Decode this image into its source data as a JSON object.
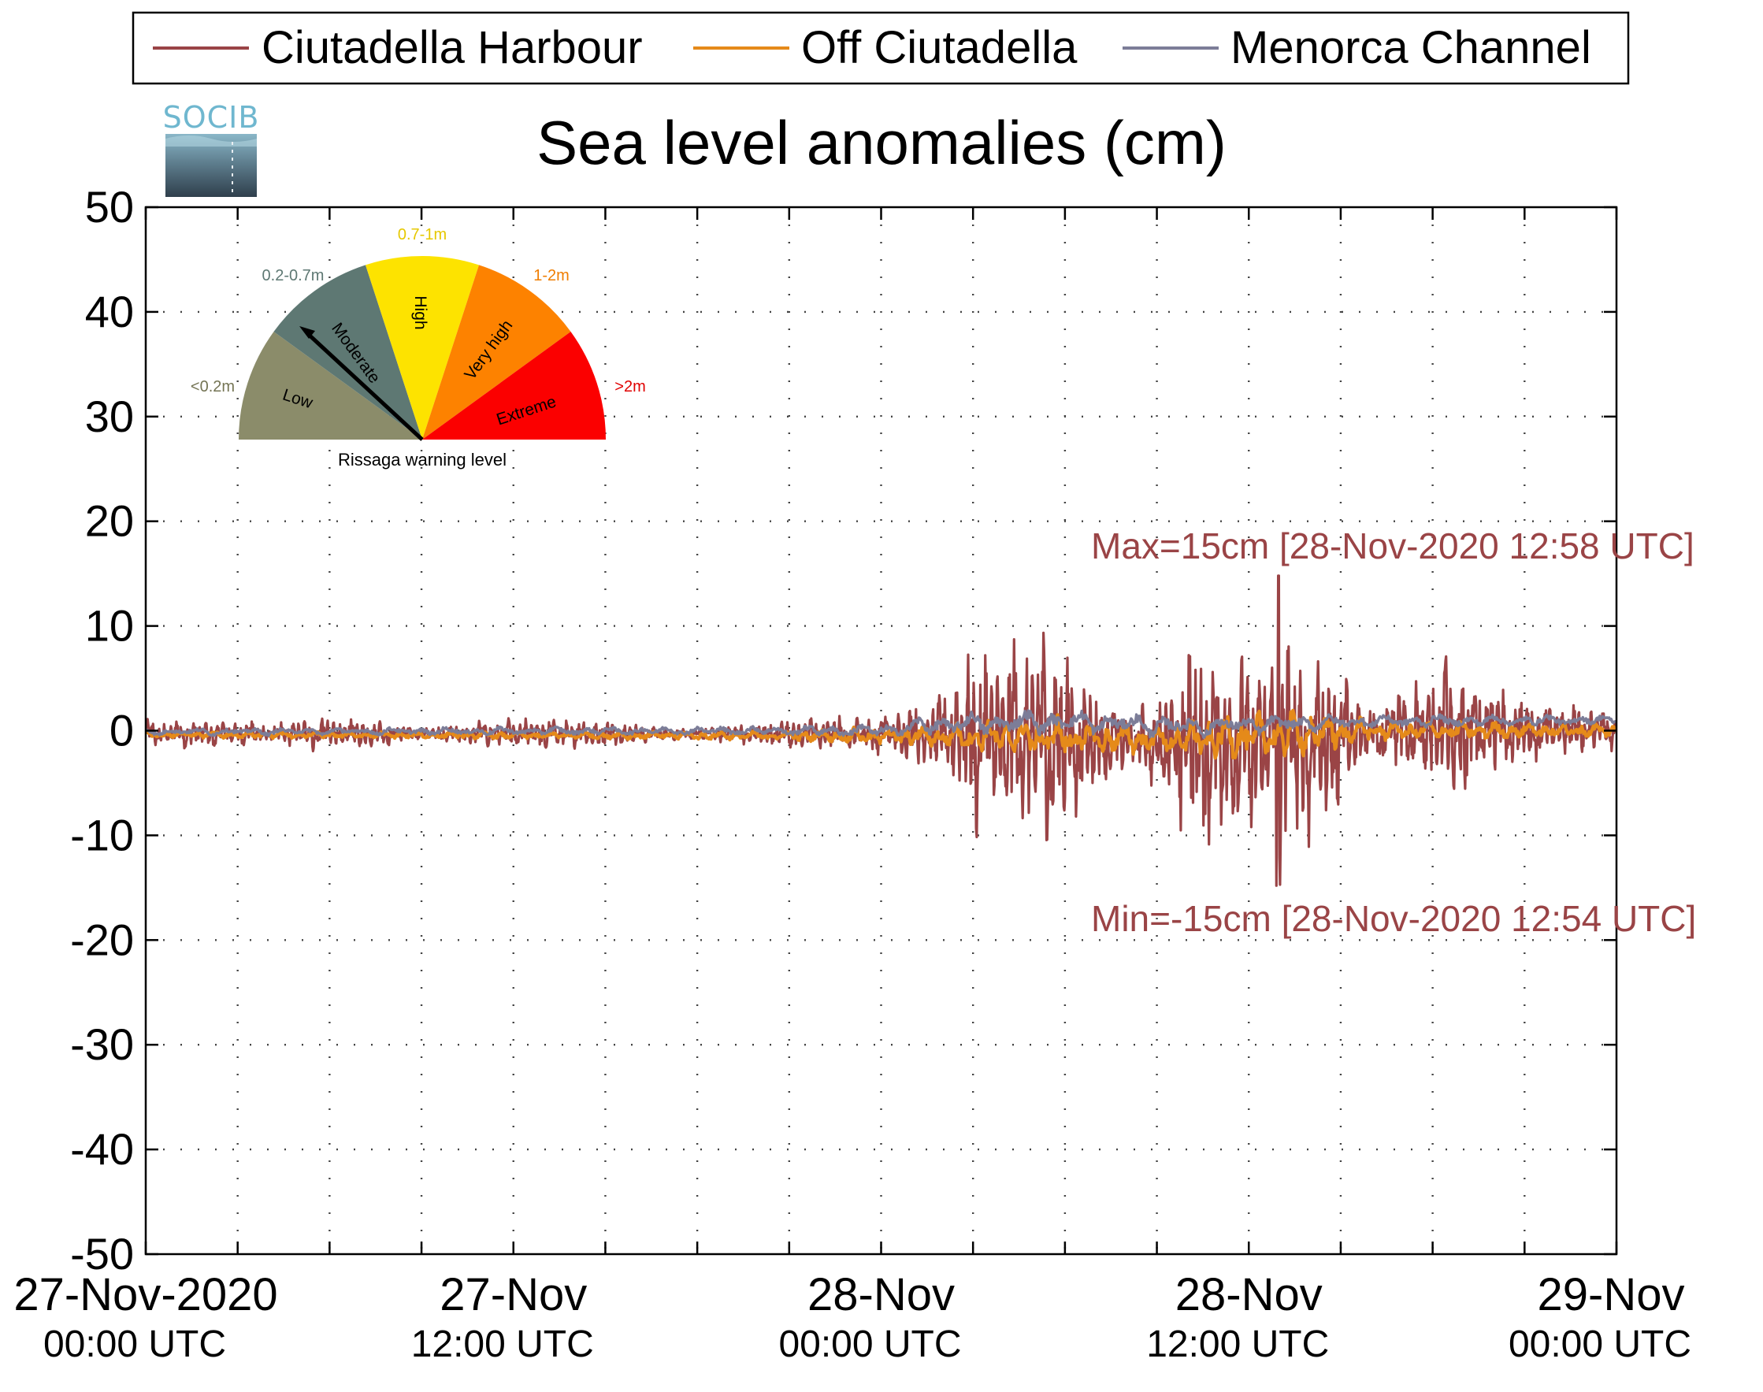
{
  "chart_data": {
    "type": "line",
    "title": "Sea level anomalies (cm)",
    "xlabel": "",
    "ylabel": "",
    "ylim": [
      -50,
      50
    ],
    "yticks": [
      50,
      40,
      30,
      20,
      10,
      0,
      -10,
      -20,
      -30,
      -40,
      -50
    ],
    "xlim_hours": [
      0,
      48
    ],
    "xticks": [
      {
        "hours": 0,
        "line1": "27-Nov-2020",
        "line2": "00:00 UTC"
      },
      {
        "hours": 12,
        "line1": "27-Nov",
        "line2": "12:00 UTC"
      },
      {
        "hours": 24,
        "line1": "28-Nov",
        "line2": "00:00 UTC"
      },
      {
        "hours": 36,
        "line1": "28-Nov",
        "line2": "12:00 UTC"
      },
      {
        "hours": 48,
        "line1": "29-Nov",
        "line2": "00:00 UTC"
      }
    ],
    "grid": true,
    "legend_position": "top",
    "series": [
      {
        "name": "Ciutadella Harbour",
        "color": "#9a4446",
        "stroke": 3.2,
        "envelope": [
          [
            0,
            1.5
          ],
          [
            2,
            1.6
          ],
          [
            4,
            1.2
          ],
          [
            6,
            2.0
          ],
          [
            8,
            1.2
          ],
          [
            9,
            0.6
          ],
          [
            11,
            1.4
          ],
          [
            13,
            1.8
          ],
          [
            15,
            1.4
          ],
          [
            17,
            0.8
          ],
          [
            18,
            0.6
          ],
          [
            20,
            1.4
          ],
          [
            22,
            1.8
          ],
          [
            24,
            2.2
          ],
          [
            25,
            3.0
          ],
          [
            26,
            4.5
          ],
          [
            27,
            10.0
          ],
          [
            28,
            10.5
          ],
          [
            29,
            12.5
          ],
          [
            30,
            11.0
          ],
          [
            31,
            6.0
          ],
          [
            32,
            3.0
          ],
          [
            33,
            4.5
          ],
          [
            34,
            12.5
          ],
          [
            35,
            11.0
          ],
          [
            36,
            9.0
          ],
          [
            37,
            14.8
          ],
          [
            38,
            10.0
          ],
          [
            39,
            7.5
          ],
          [
            40,
            3.5
          ],
          [
            41,
            5.0
          ],
          [
            42,
            7.5
          ],
          [
            43,
            8.0
          ],
          [
            44,
            5.0
          ],
          [
            45,
            4.0
          ],
          [
            46,
            3.0
          ],
          [
            47,
            2.5
          ],
          [
            48,
            2.0
          ]
        ],
        "bias": [
          [
            0,
            -0.3
          ],
          [
            26,
            -0.3
          ],
          [
            28,
            -1.0
          ],
          [
            32,
            -1.0
          ],
          [
            34,
            -1.5
          ],
          [
            38,
            -1.5
          ],
          [
            40,
            0.0
          ],
          [
            48,
            0.0
          ]
        ]
      },
      {
        "name": "Off Ciutadella",
        "color": "#e58a1a",
        "stroke": 4.2,
        "envelope": [
          [
            0,
            0.4
          ],
          [
            10,
            0.4
          ],
          [
            20,
            0.5
          ],
          [
            24,
            1.0
          ],
          [
            26,
            1.3
          ],
          [
            28,
            2.0
          ],
          [
            30,
            2.3
          ],
          [
            33,
            1.6
          ],
          [
            34,
            2.5
          ],
          [
            38,
            2.8
          ],
          [
            40,
            1.2
          ],
          [
            48,
            0.8
          ]
        ],
        "bias": [
          [
            0,
            -0.4
          ],
          [
            22,
            -0.5
          ],
          [
            28,
            -0.6
          ],
          [
            34,
            -0.9
          ],
          [
            40,
            0.0
          ],
          [
            48,
            0.0
          ]
        ]
      },
      {
        "name": "Menorca Channel",
        "color": "#7c7d98",
        "stroke": 3.4,
        "envelope": [
          [
            0,
            0.4
          ],
          [
            20,
            0.5
          ],
          [
            24,
            0.8
          ],
          [
            26,
            1.2
          ],
          [
            28,
            1.4
          ],
          [
            34,
            1.2
          ],
          [
            40,
            0.8
          ],
          [
            48,
            0.6
          ]
        ],
        "bias": [
          [
            0,
            -0.1
          ],
          [
            20,
            0.0
          ],
          [
            24,
            0.0
          ],
          [
            26,
            0.6
          ],
          [
            30,
            0.9
          ],
          [
            34,
            0.4
          ],
          [
            40,
            0.9
          ],
          [
            48,
            1.0
          ]
        ]
      }
    ],
    "annotations": {
      "max_label": "Max=15cm [28-Nov-2020 12:58 UTC]",
      "min_label": "Min=-15cm [28-Nov-2020 12:54 UTC]",
      "label_color": "#9a4446"
    }
  },
  "logo": {
    "text": "SOCIB"
  },
  "gauge": {
    "caption": "Rissaga warning level",
    "needle_sector": "Moderate",
    "sectors": [
      {
        "name": "Low",
        "range": "<0.2m",
        "color": "#8b8c6a",
        "text_color": "#747454"
      },
      {
        "name": "Moderate",
        "range": "0.2-0.7m",
        "color": "#5e7873",
        "text_color": "#5e7873"
      },
      {
        "name": "High",
        "range": "0.7-1m",
        "color": "#fde300",
        "text_color": "#e6c800"
      },
      {
        "name": "Very high",
        "range": "1-2m",
        "color": "#fd8200",
        "text_color": "#f07d00"
      },
      {
        "name": "Extreme",
        "range": ">2m",
        "color": "#fb0000",
        "text_color": "#e00000"
      }
    ]
  }
}
